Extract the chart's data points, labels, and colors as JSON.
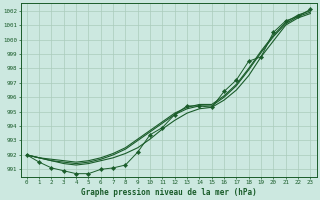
{
  "background_color": "#cce8e0",
  "grid_color": "#aaccbb",
  "line_color": "#1a5c2a",
  "title": "Graphe pression niveau de la mer (hPa)",
  "xlim": [
    -0.5,
    23.5
  ],
  "ylim": [
    990.5,
    1002.5
  ],
  "yticks": [
    991,
    992,
    993,
    994,
    995,
    996,
    997,
    998,
    999,
    1000,
    1001,
    1002
  ],
  "xticks": [
    0,
    1,
    2,
    3,
    4,
    5,
    6,
    7,
    8,
    9,
    10,
    11,
    12,
    13,
    14,
    15,
    16,
    17,
    18,
    19,
    20,
    21,
    22,
    23
  ],
  "smooth_line1": [
    992.0,
    991.8,
    991.6,
    991.4,
    991.3,
    991.4,
    991.6,
    991.8,
    992.1,
    992.5,
    993.1,
    993.8,
    994.4,
    994.9,
    995.2,
    995.3,
    995.8,
    996.5,
    997.5,
    998.8,
    999.9,
    1001.0,
    1001.5,
    1001.8
  ],
  "smooth_line2": [
    992.0,
    991.8,
    991.6,
    991.5,
    991.4,
    991.5,
    991.7,
    992.0,
    992.4,
    993.0,
    993.6,
    994.2,
    994.8,
    995.2,
    995.4,
    995.4,
    996.0,
    996.8,
    997.9,
    999.1,
    1000.2,
    1001.1,
    1001.6,
    1001.9
  ],
  "smooth_line3": [
    992.0,
    991.8,
    991.7,
    991.6,
    991.5,
    991.6,
    991.8,
    992.1,
    992.5,
    993.1,
    993.7,
    994.3,
    994.9,
    995.3,
    995.5,
    995.5,
    996.1,
    996.9,
    998.0,
    999.2,
    1000.3,
    1001.2,
    1001.7,
    1002.0
  ],
  "marker_line": [
    992.0,
    991.5,
    991.1,
    990.9,
    990.7,
    990.7,
    991.0,
    991.1,
    991.3,
    992.2,
    993.4,
    993.9,
    994.8,
    995.4,
    995.4,
    995.3,
    996.4,
    997.2,
    998.5,
    998.8,
    1000.5,
    1001.3,
    1001.6,
    1002.1
  ]
}
